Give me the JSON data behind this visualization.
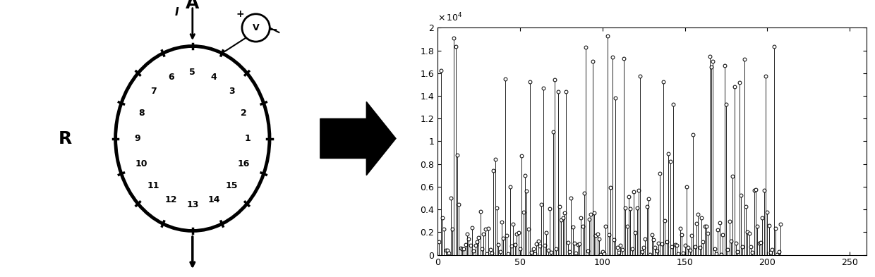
{
  "n_electrodes": 16,
  "arrow_label_A": "A",
  "arrow_label_R": "R",
  "arrow_label_I": "I",
  "arrow_label_V": "V",
  "electrode_order": [
    5,
    4,
    3,
    2,
    1,
    16,
    15,
    14,
    13,
    12,
    11,
    10,
    9,
    8,
    7,
    6
  ],
  "plot_xlim": [
    0,
    260
  ],
  "plot_ylim": [
    0,
    20000
  ],
  "plot_yticks": [
    0,
    2000,
    4000,
    6000,
    8000,
    10000,
    12000,
    14000,
    16000,
    18000,
    20000
  ],
  "plot_ytick_labels": [
    "0",
    "0.2",
    "0.4",
    "0.6",
    "0.8",
    "1",
    "1.2",
    "1.4",
    "1.6",
    "1.8",
    "2"
  ],
  "plot_xticks": [
    0,
    50,
    100,
    150,
    200,
    250
  ],
  "background_color": "#ffffff",
  "line_color": "#000000",
  "seed": 42
}
